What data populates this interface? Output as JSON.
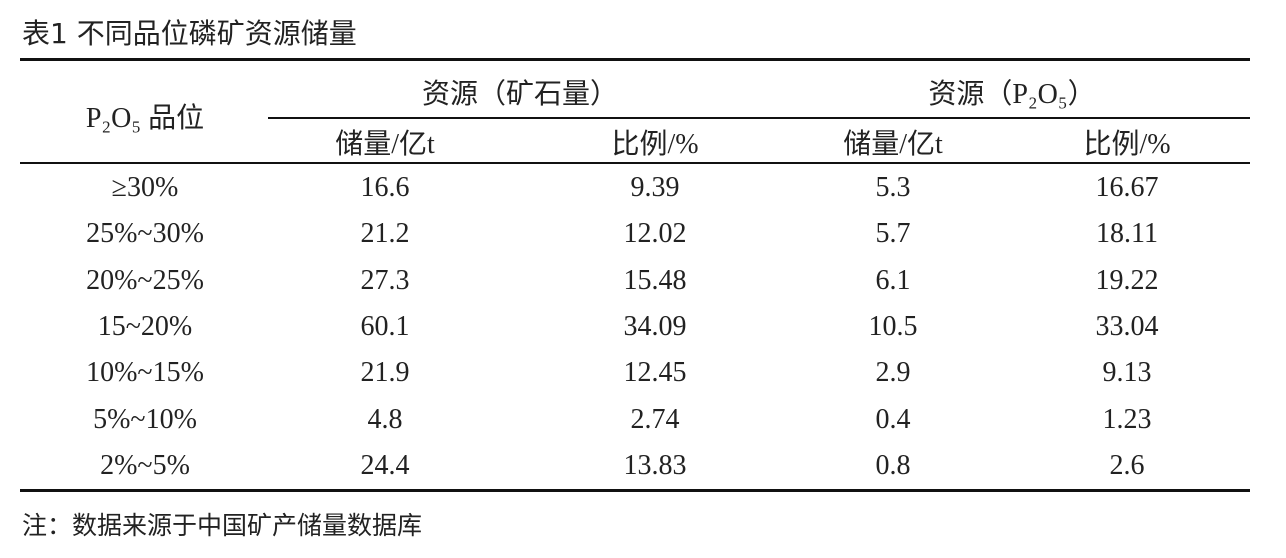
{
  "title": "表1 不同品位磷矿资源储量",
  "table": {
    "header": {
      "grade": "P₂O₅ 品位",
      "group_ore": "资源（矿石量）",
      "group_p2o5": "资源（P₂O₅）",
      "sub": [
        "储量/亿t",
        "比例/%",
        "储量/亿t",
        "比例/%"
      ]
    },
    "rows": [
      [
        "≥30%",
        "16.6",
        "9.39",
        "5.3",
        "16.67"
      ],
      [
        "25%~30%",
        "21.2",
        "12.02",
        "5.7",
        "18.11"
      ],
      [
        "20%~25%",
        "27.3",
        "15.48",
        "6.1",
        "19.22"
      ],
      [
        "15~20%",
        "60.1",
        "34.09",
        "10.5",
        "33.04"
      ],
      [
        "10%~15%",
        "21.9",
        "12.45",
        "2.9",
        "9.13"
      ],
      [
        "5%~10%",
        "4.8",
        "2.74",
        "0.4",
        "1.23"
      ],
      [
        "2%~5%",
        "24.4",
        "13.83",
        "0.8",
        "2.6"
      ]
    ]
  },
  "note": "注：数据来源于中国矿产储量数据库"
}
